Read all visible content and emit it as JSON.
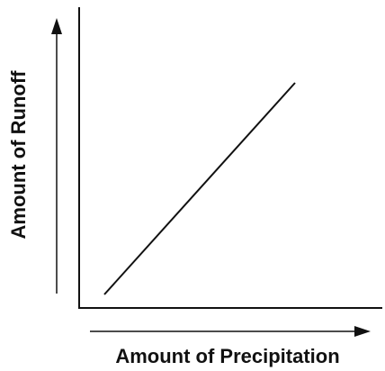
{
  "chart_data": {
    "type": "line",
    "x_label": "Amount of Precipitation",
    "y_label": "Amount of Runoff"
  }
}
